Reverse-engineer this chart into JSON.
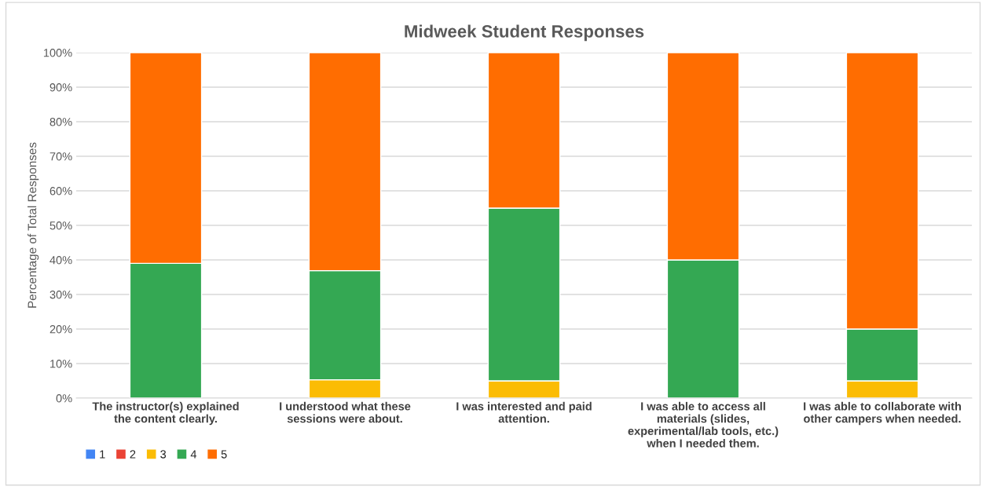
{
  "chart_data": {
    "type": "bar",
    "title": "Midweek Student Responses",
    "ylabel": "Percentage of Total Responses",
    "categories": [
      "The instructor(s) explained the content clearly.",
      "I understood what these sessions were about.",
      "I was interested and paid attention.",
      "I was able to access all materials (slides, experimental/lab tools, etc.) when I needed them.",
      "I was able to collaborate with other campers when needed."
    ],
    "stacked": true,
    "series": [
      {
        "name": "1",
        "color": "#4285f4",
        "values": [
          0,
          0,
          0,
          0,
          0
        ]
      },
      {
        "name": "2",
        "color": "#ea4335",
        "values": [
          0,
          0,
          0,
          0,
          0
        ]
      },
      {
        "name": "3",
        "color": "#fbbc04",
        "values": [
          0,
          5.3,
          5,
          0,
          5
        ]
      },
      {
        "name": "4",
        "color": "#34a853",
        "values": [
          39,
          31.6,
          50,
          40,
          15
        ]
      },
      {
        "name": "5",
        "color": "#ff6d01",
        "values": [
          61,
          63.1,
          45,
          60,
          80
        ]
      }
    ],
    "ylim": [
      0,
      100
    ],
    "yticks": [
      {
        "value": 0,
        "label": "0%"
      },
      {
        "value": 10,
        "label": "10%"
      },
      {
        "value": 20,
        "label": "20%"
      },
      {
        "value": 30,
        "label": "30%"
      },
      {
        "value": 40,
        "label": "40%"
      },
      {
        "value": 50,
        "label": "50%"
      },
      {
        "value": 60,
        "label": "60%"
      },
      {
        "value": 70,
        "label": "70%"
      },
      {
        "value": 80,
        "label": "80%"
      },
      {
        "value": 90,
        "label": "90%"
      },
      {
        "value": 100,
        "label": "100%"
      }
    ],
    "grid": "y",
    "legend": "bottom left"
  }
}
